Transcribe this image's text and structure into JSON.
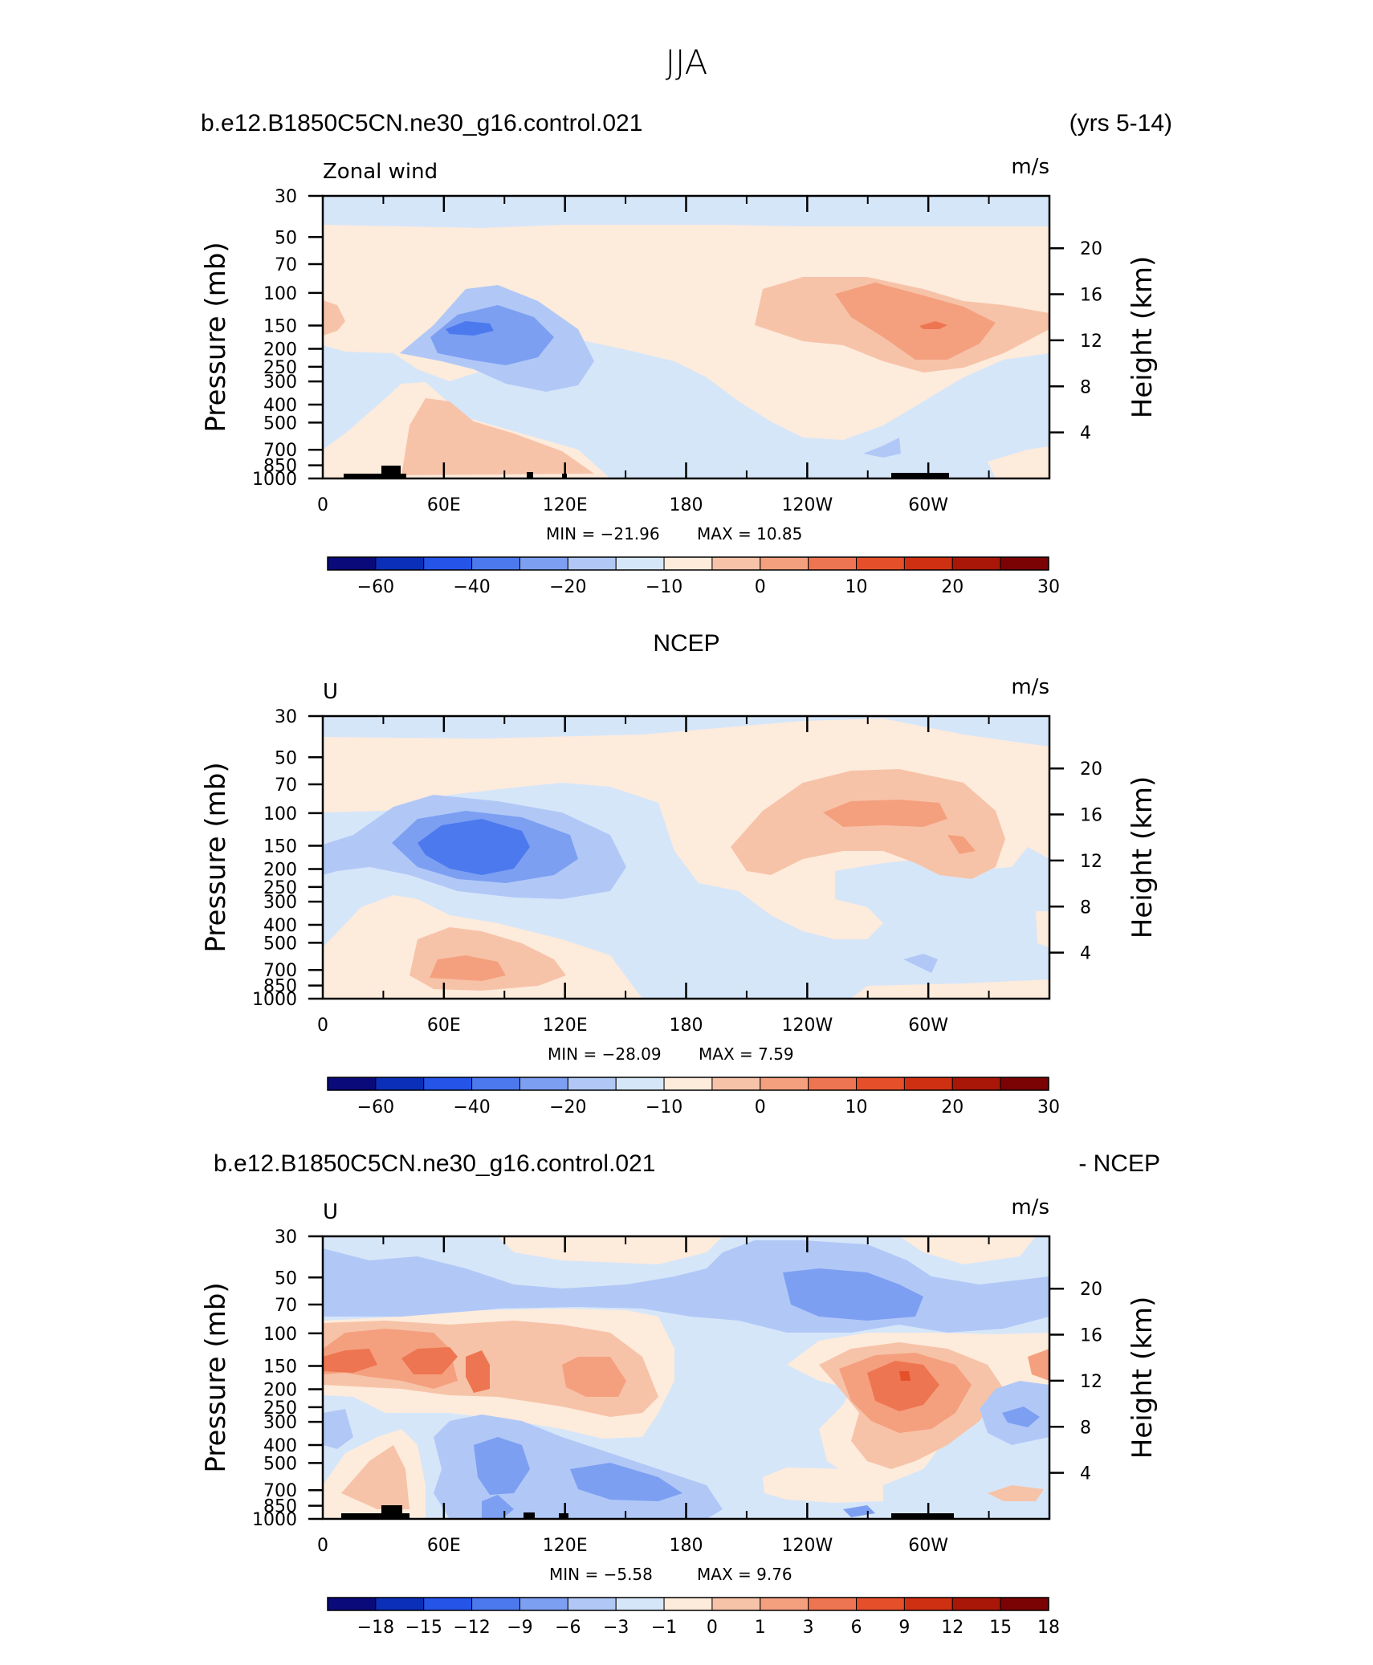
{
  "page": {
    "title": "JJA",
    "top_left": "b.e12.B1850C5CN.ne30_g16.control.021",
    "top_right": "(yrs 5-14)",
    "middle_title": "NCEP",
    "bottom_left": "b.e12.B1850C5CN.ne30_g16.control.021",
    "bottom_right": "- NCEP"
  },
  "chart_data": [
    {
      "type": "heatmap",
      "panel_label": "Zonal wind",
      "units": "m/s",
      "ylabel": "Pressure (mb)",
      "ylabel_right": "Height (km)",
      "x_ticks": [
        "0",
        "60E",
        "120E",
        "180",
        "120W",
        "60W"
      ],
      "y_ticks": [
        "30",
        "50",
        "70",
        "100",
        "150",
        "200",
        "250",
        "300",
        "400",
        "500",
        "700",
        "850",
        "1000"
      ],
      "y_ticks_right": [
        "20",
        "16",
        "12",
        "8",
        "4"
      ],
      "min_label": "MIN = −21.96",
      "max_label": "MAX = 10.85",
      "min": -21.96,
      "max": 10.85,
      "colorbar_labels": [
        "−60",
        "−40",
        "−20",
        "−10",
        "0",
        "10",
        "20",
        "30"
      ],
      "colorbar_colors": [
        "#0a0a7a",
        "#0b2fb8",
        "#2454e8",
        "#4c79ee",
        "#7c9ff2",
        "#b1c8f7",
        "#d6e6f9",
        "#fdebdc",
        "#f7c3a8",
        "#f4a07f",
        "#ee7551",
        "#e5502b",
        "#cf3012",
        "#a81707",
        "#7b0303"
      ]
    },
    {
      "type": "heatmap",
      "panel_label": "U",
      "units": "m/s",
      "ylabel": "Pressure (mb)",
      "ylabel_right": "Height (km)",
      "x_ticks": [
        "0",
        "60E",
        "120E",
        "180",
        "120W",
        "60W"
      ],
      "y_ticks": [
        "30",
        "50",
        "70",
        "100",
        "150",
        "200",
        "250",
        "300",
        "400",
        "500",
        "700",
        "850",
        "1000"
      ],
      "y_ticks_right": [
        "20",
        "16",
        "12",
        "8",
        "4"
      ],
      "min_label": "MIN = −28.09",
      "max_label": "MAX = 7.59",
      "min": -28.09,
      "max": 7.59,
      "colorbar_labels": [
        "−60",
        "−40",
        "−20",
        "−10",
        "0",
        "10",
        "20",
        "30"
      ],
      "colorbar_colors": [
        "#0a0a7a",
        "#0b2fb8",
        "#2454e8",
        "#4c79ee",
        "#7c9ff2",
        "#b1c8f7",
        "#d6e6f9",
        "#fdebdc",
        "#f7c3a8",
        "#f4a07f",
        "#ee7551",
        "#e5502b",
        "#cf3012",
        "#a81707",
        "#7b0303"
      ]
    },
    {
      "type": "heatmap",
      "panel_label": "U",
      "units": "m/s",
      "ylabel": "Pressure (mb)",
      "ylabel_right": "Height (km)",
      "x_ticks": [
        "0",
        "60E",
        "120E",
        "180",
        "120W",
        "60W"
      ],
      "y_ticks": [
        "30",
        "50",
        "70",
        "100",
        "150",
        "200",
        "250",
        "300",
        "400",
        "500",
        "700",
        "850",
        "1000"
      ],
      "y_ticks_right": [
        "20",
        "16",
        "12",
        "8",
        "4"
      ],
      "min_label": "MIN = −5.58",
      "max_label": "MAX = 9.76",
      "min": -5.58,
      "max": 9.76,
      "colorbar_labels": [
        "−18",
        "−15",
        "−12",
        "−9",
        "−6",
        "−3",
        "−1",
        "0",
        "1",
        "3",
        "6",
        "9",
        "12",
        "15",
        "18"
      ],
      "colorbar_colors": [
        "#0a0a7a",
        "#0b2fb8",
        "#2454e8",
        "#4c79ee",
        "#7c9ff2",
        "#b1c8f7",
        "#d6e6f9",
        "#fdebdc",
        "#f7c3a8",
        "#f4a07f",
        "#ee7551",
        "#e5502b",
        "#cf3012",
        "#a81707",
        "#7b0303"
      ]
    }
  ]
}
